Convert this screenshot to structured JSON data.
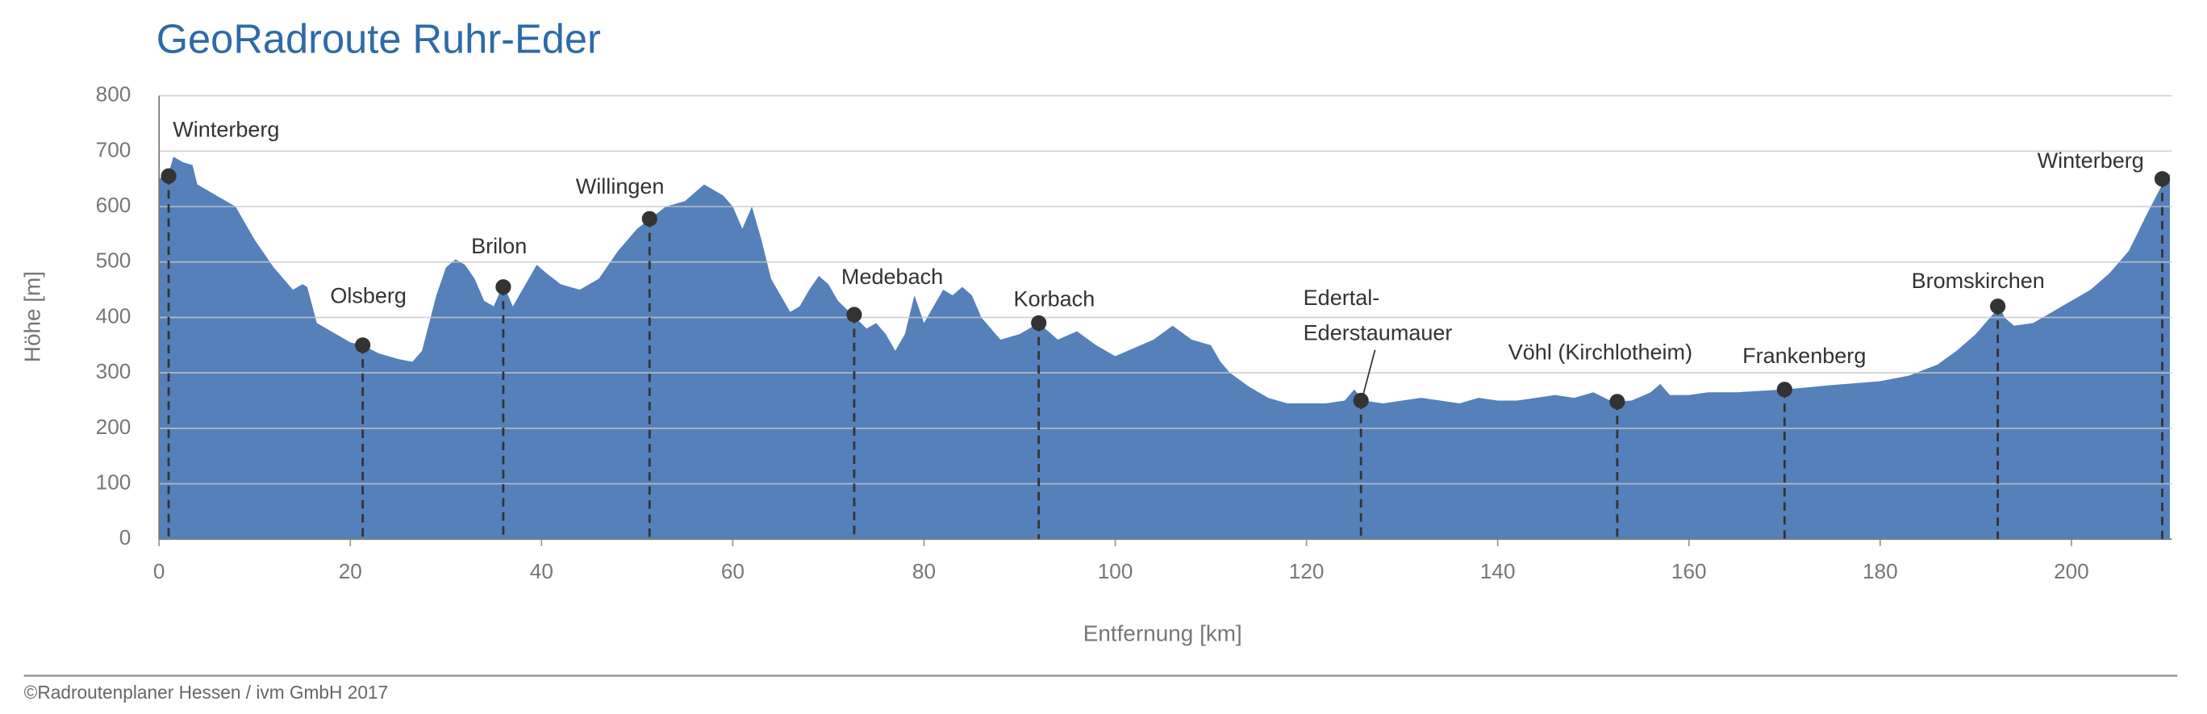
{
  "chart_data": {
    "type": "area",
    "title": "GeoRadroute Ruhr-Eder",
    "x_label": "Entfernung [km]",
    "y_label": "Höhe [m]",
    "color": "#5580b9",
    "xlim": [
      0,
      210.5
    ],
    "ylim": [
      0,
      800
    ],
    "xticks": [
      0,
      20,
      40,
      60,
      80,
      100,
      120,
      140,
      160,
      180,
      200
    ],
    "yticks": [
      0,
      100,
      200,
      300,
      400,
      500,
      600,
      700,
      800
    ],
    "grid": true,
    "x": [
      0,
      1,
      1.5,
      2.5,
      3.5,
      4,
      6,
      8,
      10,
      12,
      14,
      15,
      15.5,
      16.5,
      18,
      20,
      21.3,
      23,
      25,
      26.5,
      27.5,
      29,
      30,
      31,
      32,
      33,
      34,
      35,
      36,
      37,
      38,
      39.5,
      40.5,
      42,
      44,
      46,
      48,
      50,
      51.5,
      53,
      55,
      57,
      59,
      60,
      61,
      62,
      63,
      64,
      65,
      66,
      67,
      68,
      69,
      70,
      71,
      72.5,
      74,
      75,
      76,
      77,
      78,
      79,
      80,
      81,
      82,
      83,
      84,
      85,
      86,
      87,
      88,
      90,
      92,
      94,
      96,
      98,
      100,
      102,
      104,
      106,
      108,
      110,
      111,
      112,
      114,
      116,
      118,
      120,
      122,
      124,
      125,
      126,
      128,
      130,
      132,
      134,
      136,
      138,
      140,
      142,
      144,
      146,
      148,
      150,
      152,
      154,
      156,
      157,
      158,
      160,
      162,
      165,
      170,
      175,
      180,
      183,
      186,
      188,
      190,
      191,
      192.5,
      193,
      194,
      196,
      198,
      200,
      202,
      204,
      206,
      207,
      208,
      209.5,
      210.3
    ],
    "values": [
      650,
      660,
      690,
      680,
      675,
      640,
      620,
      600,
      540,
      490,
      450,
      460,
      455,
      390,
      375,
      355,
      350,
      335,
      325,
      320,
      340,
      440,
      490,
      505,
      495,
      470,
      430,
      420,
      460,
      420,
      450,
      495,
      480,
      460,
      450,
      470,
      520,
      560,
      580,
      600,
      610,
      640,
      620,
      600,
      560,
      600,
      540,
      470,
      440,
      410,
      420,
      450,
      475,
      460,
      430,
      405,
      380,
      390,
      370,
      340,
      370,
      440,
      390,
      420,
      450,
      440,
      455,
      440,
      400,
      380,
      360,
      370,
      390,
      360,
      375,
      350,
      330,
      345,
      360,
      385,
      360,
      350,
      320,
      300,
      275,
      255,
      245,
      245,
      245,
      250,
      270,
      250,
      245,
      250,
      255,
      250,
      245,
      255,
      250,
      250,
      255,
      260,
      255,
      265,
      248,
      250,
      265,
      280,
      260,
      260,
      265,
      265,
      270,
      278,
      285,
      295,
      315,
      340,
      370,
      390,
      420,
      400,
      385,
      390,
      410,
      430,
      450,
      480,
      520,
      555,
      590,
      640,
      660
    ],
    "markers": [
      {
        "label": [
          "Winterberg"
        ],
        "x": 1,
        "y": 655
      },
      {
        "label": [
          "Olsberg"
        ],
        "x": 21.3,
        "y": 350
      },
      {
        "label": [
          "Brilon"
        ],
        "x": 36,
        "y": 455
      },
      {
        "label": [
          "Willingen"
        ],
        "x": 51.3,
        "y": 578
      },
      {
        "label": [
          "Medebach"
        ],
        "x": 72.7,
        "y": 405
      },
      {
        "label": [
          "Korbach"
        ],
        "x": 92,
        "y": 390
      },
      {
        "label": [
          "Edertal-",
          "Ederstaumauer"
        ],
        "x": 125.7,
        "y": 250
      },
      {
        "label": [
          "Vöhl (Kirchlotheim)"
        ],
        "x": 152.5,
        "y": 248
      },
      {
        "label": [
          "Frankenberg"
        ],
        "x": 170,
        "y": 270
      },
      {
        "label": [
          "Bromskirchen"
        ],
        "x": 192.3,
        "y": 420
      },
      {
        "label": [
          "Winterberg"
        ],
        "x": 209.5,
        "y": 650
      }
    ]
  },
  "footer": "©Radroutenplaner Hessen / ivm GmbH 2017"
}
